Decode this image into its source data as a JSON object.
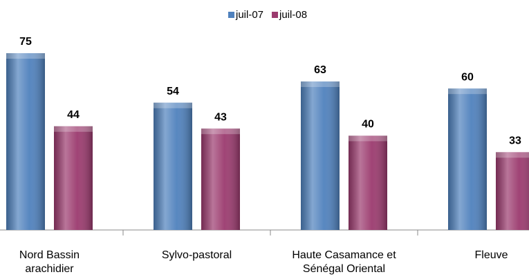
{
  "chart_data": {
    "type": "bar",
    "categories": [
      "Nord Bassin\narachidier",
      "Sylvo-pastoral",
      "Haute Casamance et\nSénégal Oriental",
      "Fleuve"
    ],
    "series": [
      {
        "name": "juil-07",
        "color": "#4f81bd",
        "values": [
          75,
          54,
          63,
          60
        ]
      },
      {
        "name": "juil-08",
        "color": "#9b3a6e",
        "values": [
          44,
          43,
          40,
          33
        ]
      }
    ],
    "ylim": [
      0,
      75
    ],
    "legend": "top"
  }
}
